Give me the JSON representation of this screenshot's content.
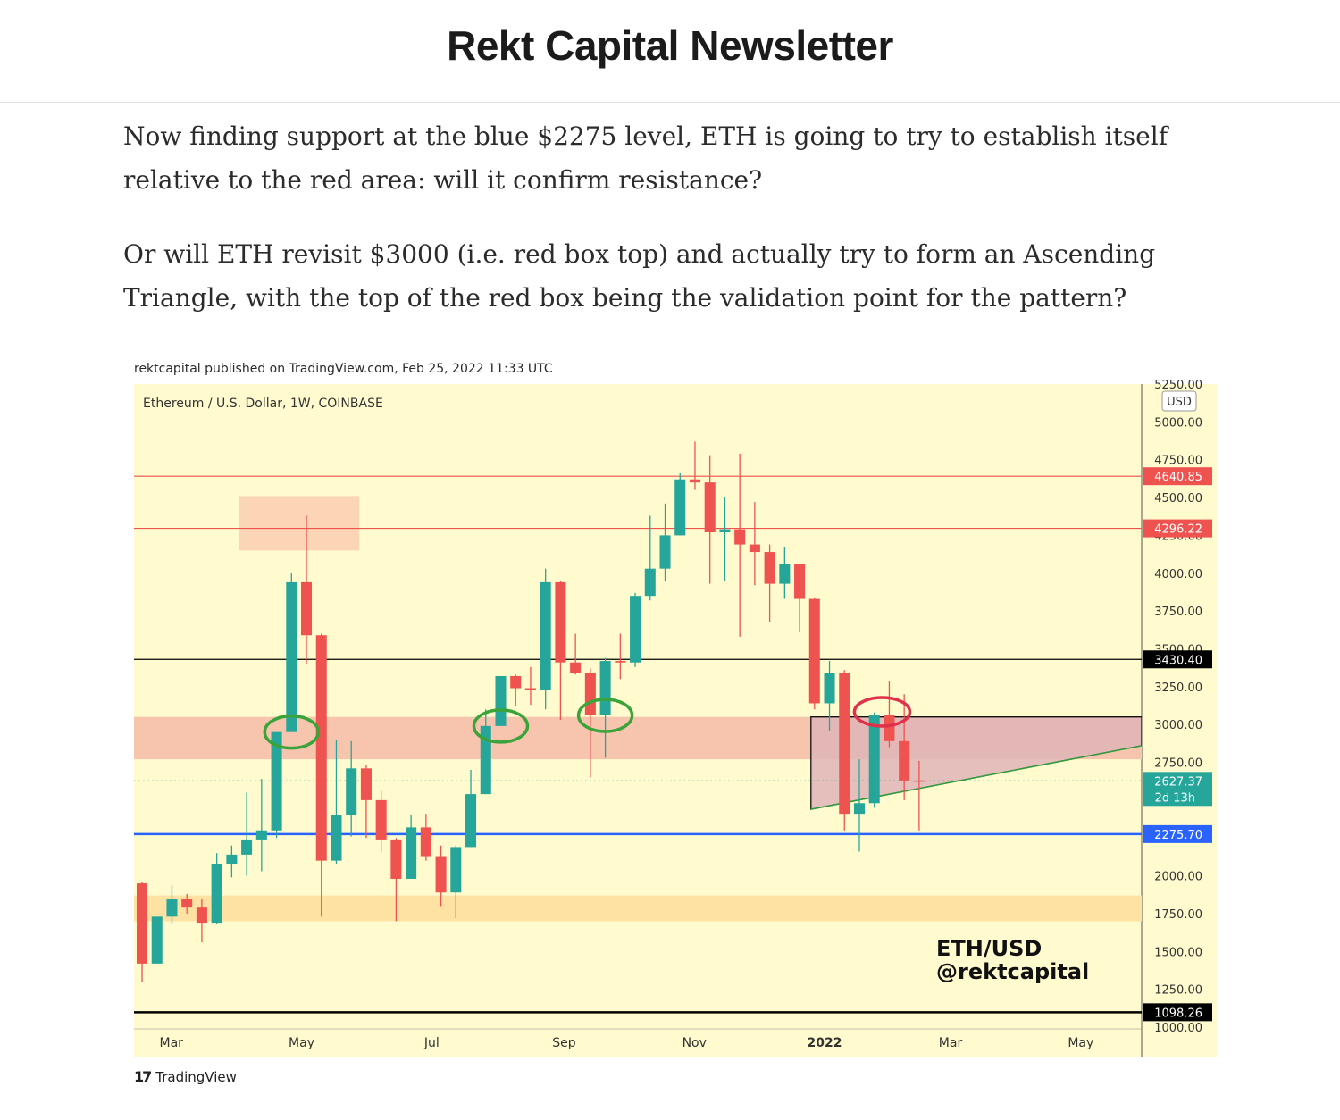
{
  "header": {
    "title": "Rekt Capital Newsletter"
  },
  "article": {
    "paragraphs": [
      "Now finding support at the blue $2275 level, ETH is going to try to establish itself relative to the red area: will it confirm resistance?",
      "Or will ETH revisit $3000 (i.e. red box top) and actually try to form an Ascending Triangle, with the top of the red box being the validation point for the pattern?"
    ]
  },
  "chart_meta": {
    "published": "rektcapital published on TradingView.com, Feb 25, 2022 11:33 UTC",
    "footer_brand": "TradingView",
    "footer_icon": "tradingview-logo-icon"
  },
  "chart_data": {
    "type": "candlestick",
    "title": "Ethereum / U.S. Dollar, 1W, COINBASE",
    "currency_label": "USD",
    "ylim": [
      1000,
      5250
    ],
    "y_ticks": [
      1000,
      1250,
      1500,
      1750,
      2000,
      2250,
      2500,
      2750,
      3000,
      3250,
      3500,
      3750,
      4000,
      4250,
      4500,
      4750,
      5000,
      5250
    ],
    "x_labels": [
      {
        "label": "Mar",
        "date": "2021-03-01",
        "bold": false
      },
      {
        "label": "May",
        "date": "2021-05-01",
        "bold": false
      },
      {
        "label": "Jul",
        "date": "2021-07-01",
        "bold": false
      },
      {
        "label": "Sep",
        "date": "2021-09-01",
        "bold": false
      },
      {
        "label": "Nov",
        "date": "2021-11-01",
        "bold": false
      },
      {
        "label": "2022",
        "date": "2022-01-01",
        "bold": true
      },
      {
        "label": "Mar",
        "date": "2022-03-01",
        "bold": false
      },
      {
        "label": "May",
        "date": "2022-05-01",
        "bold": false
      }
    ],
    "xlim": [
      "2021-02-22",
      "2022-06-09"
    ],
    "up_color": "#26a69a",
    "down_color": "#ef5350",
    "background": "#fffbcf",
    "candles": [
      {
        "date": "2021-02-22",
        "o": 1950,
        "h": 1960,
        "l": 1300,
        "c": 1420
      },
      {
        "date": "2021-03-01",
        "o": 1420,
        "h": 1730,
        "l": 1420,
        "c": 1730
      },
      {
        "date": "2021-03-08",
        "o": 1730,
        "h": 1940,
        "l": 1680,
        "c": 1850
      },
      {
        "date": "2021-03-15",
        "o": 1850,
        "h": 1880,
        "l": 1750,
        "c": 1790
      },
      {
        "date": "2021-03-22",
        "o": 1790,
        "h": 1850,
        "l": 1560,
        "c": 1690
      },
      {
        "date": "2021-03-29",
        "o": 1690,
        "h": 2150,
        "l": 1680,
        "c": 2080
      },
      {
        "date": "2021-04-05",
        "o": 2080,
        "h": 2200,
        "l": 1990,
        "c": 2140
      },
      {
        "date": "2021-04-12",
        "o": 2140,
        "h": 2550,
        "l": 2000,
        "c": 2240
      },
      {
        "date": "2021-04-19",
        "o": 2240,
        "h": 2640,
        "l": 2030,
        "c": 2300
      },
      {
        "date": "2021-04-26",
        "o": 2300,
        "h": 2950,
        "l": 2250,
        "c": 2950
      },
      {
        "date": "2021-05-03",
        "o": 2950,
        "h": 4000,
        "l": 2950,
        "c": 3940
      },
      {
        "date": "2021-05-10",
        "o": 3940,
        "h": 4380,
        "l": 3400,
        "c": 3590
      },
      {
        "date": "2021-05-17",
        "o": 3590,
        "h": 3600,
        "l": 1730,
        "c": 2100
      },
      {
        "date": "2021-05-24",
        "o": 2100,
        "h": 2900,
        "l": 2080,
        "c": 2400
      },
      {
        "date": "2021-05-31",
        "o": 2400,
        "h": 2890,
        "l": 2260,
        "c": 2710
      },
      {
        "date": "2021-06-07",
        "o": 2710,
        "h": 2730,
        "l": 2250,
        "c": 2500
      },
      {
        "date": "2021-06-14",
        "o": 2500,
        "h": 2560,
        "l": 2160,
        "c": 2240
      },
      {
        "date": "2021-06-21",
        "o": 2240,
        "h": 2250,
        "l": 1700,
        "c": 1980
      },
      {
        "date": "2021-06-28",
        "o": 1980,
        "h": 2400,
        "l": 1980,
        "c": 2320
      },
      {
        "date": "2021-07-05",
        "o": 2320,
        "h": 2410,
        "l": 2100,
        "c": 2130
      },
      {
        "date": "2021-07-12",
        "o": 2130,
        "h": 2200,
        "l": 1800,
        "c": 1890
      },
      {
        "date": "2021-07-19",
        "o": 1890,
        "h": 2200,
        "l": 1720,
        "c": 2190
      },
      {
        "date": "2021-07-26",
        "o": 2190,
        "h": 2700,
        "l": 2190,
        "c": 2540
      },
      {
        "date": "2021-08-02",
        "o": 2540,
        "h": 3100,
        "l": 2540,
        "c": 2990
      },
      {
        "date": "2021-08-09",
        "o": 2990,
        "h": 3310,
        "l": 2990,
        "c": 3320
      },
      {
        "date": "2021-08-16",
        "o": 3320,
        "h": 3330,
        "l": 3120,
        "c": 3240
      },
      {
        "date": "2021-08-23",
        "o": 3240,
        "h": 3380,
        "l": 3130,
        "c": 3230
      },
      {
        "date": "2021-08-30",
        "o": 3230,
        "h": 4030,
        "l": 3100,
        "c": 3940
      },
      {
        "date": "2021-09-06",
        "o": 3940,
        "h": 3950,
        "l": 3030,
        "c": 3410
      },
      {
        "date": "2021-09-13",
        "o": 3410,
        "h": 3600,
        "l": 3330,
        "c": 3340
      },
      {
        "date": "2021-09-20",
        "o": 3340,
        "h": 3370,
        "l": 2650,
        "c": 3060
      },
      {
        "date": "2021-09-27",
        "o": 3060,
        "h": 3440,
        "l": 2780,
        "c": 3420
      },
      {
        "date": "2021-10-04",
        "o": 3420,
        "h": 3600,
        "l": 3300,
        "c": 3410
      },
      {
        "date": "2021-10-11",
        "o": 3410,
        "h": 3870,
        "l": 3380,
        "c": 3850
      },
      {
        "date": "2021-10-18",
        "o": 3850,
        "h": 4380,
        "l": 3820,
        "c": 4030
      },
      {
        "date": "2021-10-25",
        "o": 4030,
        "h": 4460,
        "l": 3950,
        "c": 4250
      },
      {
        "date": "2021-11-01",
        "o": 4250,
        "h": 4660,
        "l": 4250,
        "c": 4620
      },
      {
        "date": "2021-11-08",
        "o": 4620,
        "h": 4870,
        "l": 4550,
        "c": 4600
      },
      {
        "date": "2021-11-15",
        "o": 4600,
        "h": 4780,
        "l": 3930,
        "c": 4270
      },
      {
        "date": "2021-11-22",
        "o": 4270,
        "h": 4500,
        "l": 3950,
        "c": 4290
      },
      {
        "date": "2021-11-29",
        "o": 4290,
        "h": 4790,
        "l": 3580,
        "c": 4190
      },
      {
        "date": "2021-12-06",
        "o": 4190,
        "h": 4470,
        "l": 3920,
        "c": 4140
      },
      {
        "date": "2021-12-13",
        "o": 4140,
        "h": 4190,
        "l": 3680,
        "c": 3930
      },
      {
        "date": "2021-12-20",
        "o": 3930,
        "h": 4170,
        "l": 3830,
        "c": 4060
      },
      {
        "date": "2021-12-27",
        "o": 4060,
        "h": 4040,
        "l": 3610,
        "c": 3830
      },
      {
        "date": "2022-01-03",
        "o": 3830,
        "h": 3840,
        "l": 3100,
        "c": 3140
      },
      {
        "date": "2022-01-10",
        "o": 3140,
        "h": 3420,
        "l": 2960,
        "c": 3340
      },
      {
        "date": "2022-01-17",
        "o": 3340,
        "h": 3360,
        "l": 2300,
        "c": 2410
      },
      {
        "date": "2022-01-24",
        "o": 2410,
        "h": 2770,
        "l": 2160,
        "c": 2480
      },
      {
        "date": "2022-01-31",
        "o": 2480,
        "h": 3080,
        "l": 2450,
        "c": 3060
      },
      {
        "date": "2022-02-07",
        "o": 3060,
        "h": 3290,
        "l": 2850,
        "c": 2890
      },
      {
        "date": "2022-02-14",
        "o": 2890,
        "h": 3200,
        "l": 2500,
        "c": 2630
      },
      {
        "date": "2022-02-21",
        "o": 2630,
        "h": 2760,
        "l": 2300,
        "c": 2627
      }
    ],
    "horizontal_levels": [
      {
        "value": 4640.85,
        "label": "4640.85",
        "color": "#ef5350"
      },
      {
        "value": 4296.22,
        "label": "4296.22",
        "color": "#ef5350"
      },
      {
        "value": 3430.4,
        "label": "3430.40",
        "color": "#000000"
      },
      {
        "value": 2627.37,
        "label": "2627.37",
        "sublabel": "2d 13h",
        "color": "#26a69a",
        "dotted": true
      },
      {
        "value": 2275.7,
        "label": "2275.70",
        "color": "#2962ff"
      },
      {
        "value": 1098.26,
        "label": "1098.26",
        "color": "#000000"
      }
    ],
    "zones": [
      {
        "y0": 2770,
        "y1": 3050,
        "from": "2021-02-22",
        "to": "2022-06-09",
        "color": "#f7c5ad"
      },
      {
        "y0": 1700,
        "y1": 1870,
        "from": "2021-02-22",
        "to": "2022-06-09",
        "color": "#fde2a3"
      },
      {
        "y0": 4150,
        "y1": 4510,
        "from": "2021-04-12",
        "to": "2021-05-31",
        "color": "#fbd5b5"
      }
    ],
    "annotations": {
      "watermark_pair": "ETH/USD",
      "watermark_handle": "@rektcapital",
      "triangle": {
        "start": "2022-01-03",
        "end": "2022-06-09",
        "top": 3050,
        "base_start": 2440,
        "base_end": 2860
      },
      "green_circles": [
        "2021-05-03",
        "2021-08-09",
        "2021-09-27"
      ],
      "red_circle": "2022-02-07"
    }
  }
}
